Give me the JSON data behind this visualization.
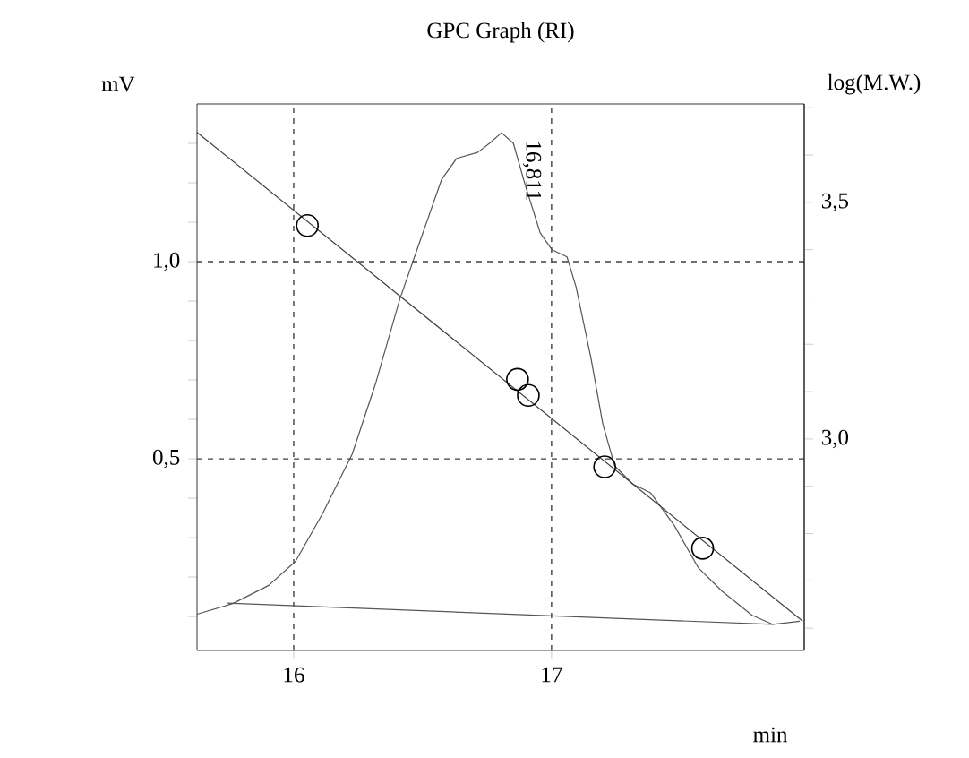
{
  "chart_data": {
    "type": "line",
    "title": "GPC Graph (RI)",
    "xlabel": "min",
    "ylabel": "mV",
    "y2label": "log(M.W.)",
    "xlim": [
      15.625,
      17.98
    ],
    "ylim": [
      0.014,
      1.4
    ],
    "y2lim": [
      2.553,
      3.708
    ],
    "xticks": [
      16,
      17
    ],
    "yticks": [
      {
        "value": 0.1,
        "label": null
      },
      {
        "value": 0.2,
        "label": null
      },
      {
        "value": 0.3,
        "label": null
      },
      {
        "value": 0.4,
        "label": null
      },
      {
        "value": 0.5,
        "label": "0,5"
      },
      {
        "value": 0.6,
        "label": null
      },
      {
        "value": 0.7,
        "label": null
      },
      {
        "value": 0.8,
        "label": null
      },
      {
        "value": 0.9,
        "label": null
      },
      {
        "value": 1.0,
        "label": "1,0"
      },
      {
        "value": 1.1,
        "label": null
      },
      {
        "value": 1.2,
        "label": null
      },
      {
        "value": 1.3,
        "label": null
      }
    ],
    "y2ticks": [
      {
        "value": 2.6,
        "label": null
      },
      {
        "value": 2.7,
        "label": null
      },
      {
        "value": 2.8,
        "label": null
      },
      {
        "value": 2.9,
        "label": null
      },
      {
        "value": 3.0,
        "label": "3,0"
      },
      {
        "value": 3.1,
        "label": null
      },
      {
        "value": 3.2,
        "label": null
      },
      {
        "value": 3.3,
        "label": null
      },
      {
        "value": 3.4,
        "label": null
      },
      {
        "value": 3.5,
        "label": "3,5"
      },
      {
        "value": 3.6,
        "label": null
      },
      {
        "value": 3.7,
        "label": null
      }
    ],
    "grid": true,
    "annotations": [
      {
        "text": "16,811",
        "x": 16.811,
        "y": 1.327
      }
    ],
    "series": [
      {
        "color": "#555555",
        "marker": "none",
        "x": [
          15.625,
          15.764,
          15.903,
          16.007,
          16.111,
          16.227,
          16.319,
          16.412,
          16.493,
          16.574,
          16.632,
          16.713,
          16.759,
          16.806,
          16.852,
          16.898,
          16.956,
          17.002,
          17.06,
          17.095,
          17.153,
          17.199,
          17.245,
          17.315,
          17.384,
          17.477,
          17.569,
          17.662,
          17.778,
          17.859,
          17.963
        ],
        "values": [
          0.106,
          0.133,
          0.179,
          0.24,
          0.36,
          0.512,
          0.694,
          0.906,
          1.058,
          1.209,
          1.262,
          1.277,
          1.3,
          1.327,
          1.3,
          1.194,
          1.073,
          1.03,
          1.012,
          0.936,
          0.755,
          0.588,
          0.482,
          0.436,
          0.414,
          0.33,
          0.224,
          0.164,
          0.103,
          0.08,
          0.088
        ]
      },
      {
        "color": "#555555",
        "marker": "none",
        "x": [
          15.74,
          17.859
        ],
        "values": [
          0.134,
          0.08
        ]
      },
      {
        "color": "#404040",
        "marker": "none",
        "axis": "y2",
        "x": [
          15.625,
          17.974
        ],
        "values": [
          3.648,
          2.615
        ]
      },
      {
        "type": "scatter",
        "color": "#000000",
        "marker": "circle",
        "axis": "y2",
        "x": [
          16.053,
          16.868,
          16.91,
          17.206,
          17.586
        ],
        "values": [
          3.451,
          3.126,
          3.092,
          2.941,
          2.769
        ]
      }
    ]
  }
}
